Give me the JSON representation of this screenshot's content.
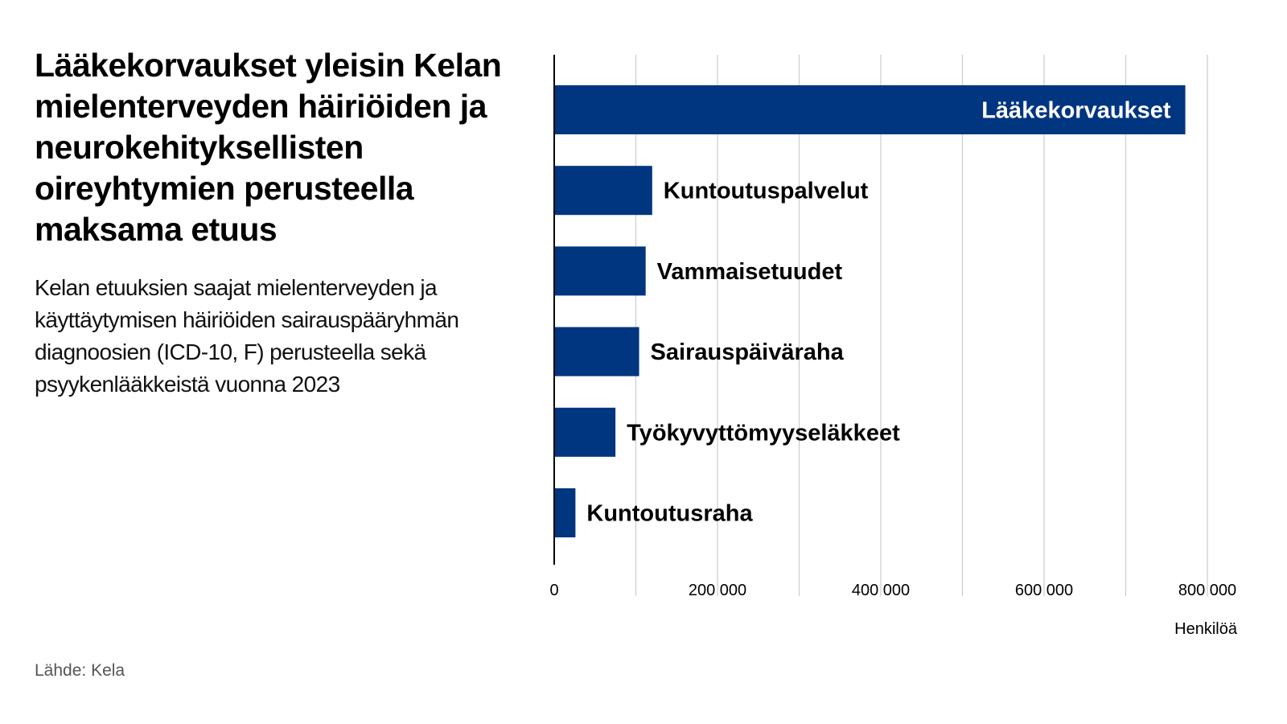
{
  "title": "Lääkekorvaukset yleisin Kelan mielenterveyden häiriöiden ja neurokehityksellisten oireyhtymien perusteella maksama etuus",
  "subtitle": "Kelan etuuksien saajat mielenterveyden ja käyttäytymisen häiriöiden sairauspääryhmän diagnoosien (ICD-10, F) perusteella sekä psyykenlääkkeistä vuonna 2023",
  "source": "Lähde: Kela",
  "colors": {
    "bar": "#003580",
    "grid": "#cccccc",
    "axis": "#000000"
  },
  "chart_data": {
    "type": "bar",
    "orientation": "horizontal",
    "categories": [
      "Lääkekorvaukset",
      "Kuntoutuspalvelut",
      "Vammaisetuudet",
      "Sairauspäiväraha",
      "Työkyvyttömyyseläkkeet",
      "Kuntoutusraha"
    ],
    "values": [
      773000,
      120000,
      112000,
      104000,
      75000,
      26000
    ],
    "xlabel": "Henkilöä",
    "xlim": [
      0,
      800000
    ],
    "xticks": [
      0,
      200000,
      400000,
      600000,
      800000
    ],
    "xtick_labels": [
      "0",
      "200 000",
      "400 000",
      "600 000",
      "800 000"
    ],
    "grid": true,
    "legend": "none"
  }
}
